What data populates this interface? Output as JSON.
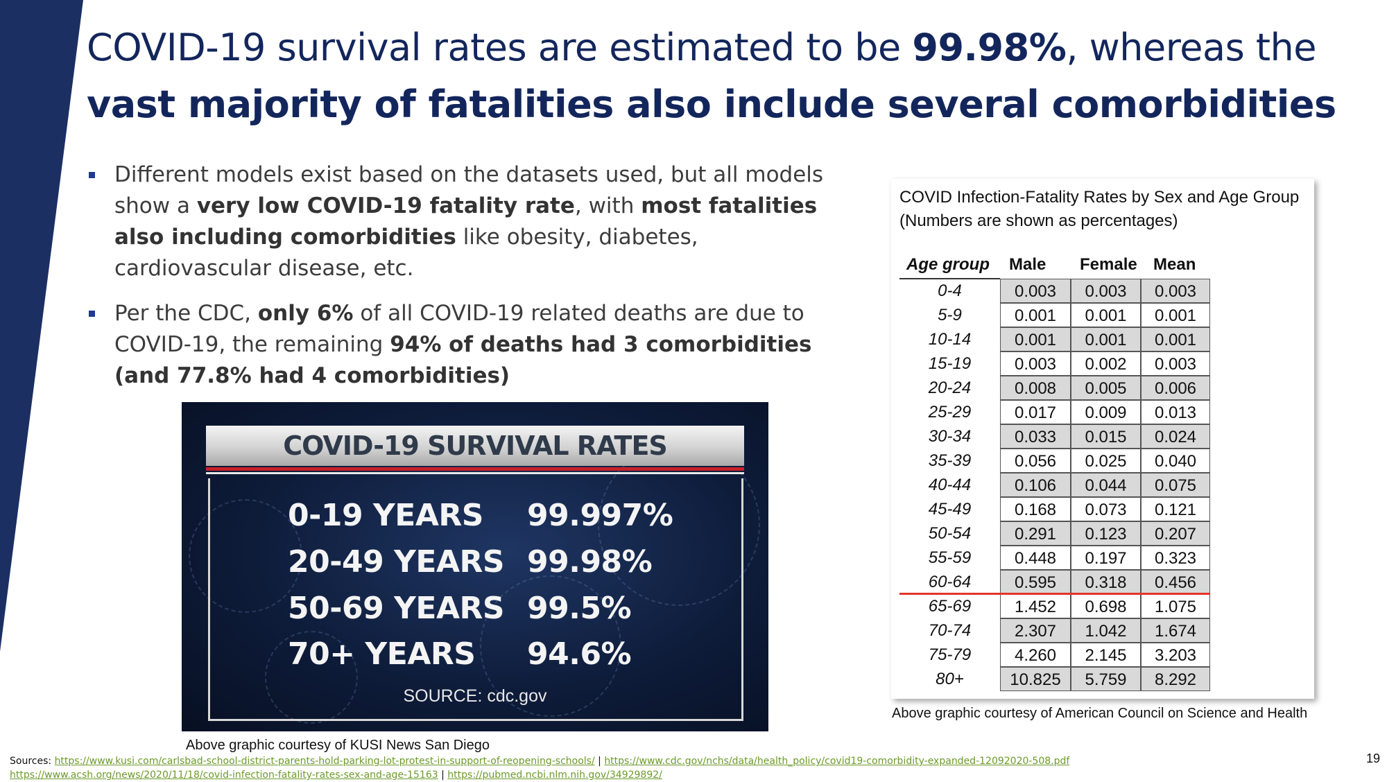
{
  "title": {
    "part1": "COVID-19 survival rates are estimated to be ",
    "highlight": "99.98%",
    "part2": ", whereas the ",
    "bold_line": "vast majority of fatalities also include several comorbidities"
  },
  "bullets": [
    {
      "t1": "Different models exist based on the datasets used, but all models show a ",
      "b1": "very low COVID-19 fatality rate",
      "t2": ", with ",
      "b2": "most fatalities also including comorbidities",
      "t3": " like obesity, diabetes, cardiovascular disease, etc."
    },
    {
      "t1": "Per the CDC, ",
      "b1": "only 6%",
      "t2": " of all COVID-19 related deaths are due to COVID-19, the remaining ",
      "b2": "94% of deaths had 3 comorbidities (and 77.8% had 4 comorbidities)",
      "t3": ""
    }
  ],
  "tv_graphic": {
    "banner": "COVID-19 SURVIVAL RATES",
    "rows": [
      {
        "age": "0-19 YEARS",
        "rate": "99.997%"
      },
      {
        "age": "20-49 YEARS",
        "rate": "99.98%"
      },
      {
        "age": "50-69 YEARS",
        "rate": "99.5%"
      },
      {
        "age": "70+ YEARS",
        "rate": "94.6%"
      }
    ],
    "source": "SOURCE: cdc.gov"
  },
  "caption_left": "Above graphic courtesy of KUSI News San Diego",
  "table": {
    "title_line1": "COVID Infection-Fatality Rates by Sex and Age Group",
    "title_line2": "(Numbers are shown as percentages)",
    "headers": {
      "age": "Age group",
      "male": "Male",
      "female": "Female",
      "mean": "Mean"
    },
    "rows": [
      {
        "age": "0-4",
        "male": "0.003",
        "female": "0.003",
        "mean": "0.003"
      },
      {
        "age": "5-9",
        "male": "0.001",
        "female": "0.001",
        "mean": "0.001"
      },
      {
        "age": "10-14",
        "male": "0.001",
        "female": "0.001",
        "mean": "0.001"
      },
      {
        "age": "15-19",
        "male": "0.003",
        "female": "0.002",
        "mean": "0.003"
      },
      {
        "age": "20-24",
        "male": "0.008",
        "female": "0.005",
        "mean": "0.006"
      },
      {
        "age": "25-29",
        "male": "0.017",
        "female": "0.009",
        "mean": "0.013"
      },
      {
        "age": "30-34",
        "male": "0.033",
        "female": "0.015",
        "mean": "0.024"
      },
      {
        "age": "35-39",
        "male": "0.056",
        "female": "0.025",
        "mean": "0.040"
      },
      {
        "age": "40-44",
        "male": "0.106",
        "female": "0.044",
        "mean": "0.075"
      },
      {
        "age": "45-49",
        "male": "0.168",
        "female": "0.073",
        "mean": "0.121"
      },
      {
        "age": "50-54",
        "male": "0.291",
        "female": "0.123",
        "mean": "0.207"
      },
      {
        "age": "55-59",
        "male": "0.448",
        "female": "0.197",
        "mean": "0.323"
      },
      {
        "age": "60-64",
        "male": "0.595",
        "female": "0.318",
        "mean": "0.456"
      },
      {
        "age": "65-69",
        "male": "1.452",
        "female": "0.698",
        "mean": "1.075"
      },
      {
        "age": "70-74",
        "male": "2.307",
        "female": "1.042",
        "mean": "1.674"
      },
      {
        "age": "75-79",
        "male": "4.260",
        "female": "2.145",
        "mean": "3.203"
      },
      {
        "age": "80+",
        "male": "10.825",
        "female": "5.759",
        "mean": "8.292"
      }
    ],
    "shade_color": "#d9d9d9",
    "red_line_color": "#e2352a"
  },
  "caption_right": "Above graphic courtesy of American Council on Science and Health",
  "sources": {
    "label": "Sources:",
    "links": [
      "https://www.kusi.com/carlsbad-school-district-parents-hold-parking-lot-protest-in-support-of-reopening-schools/",
      "https://www.cdc.gov/nchs/data/health_policy/covid19-comorbidity-expanded-12092020-508.pdf",
      "https://www.acsh.org/news/2020/11/18/covid-infection-fatality-rates-sex-and-age-15163",
      "https://pubmed.ncbi.nlm.nih.gov/34929892/"
    ],
    "separator": "|"
  },
  "page_number": "19",
  "colors": {
    "accent": "#13265c",
    "side_bar": "#1b2f63"
  }
}
